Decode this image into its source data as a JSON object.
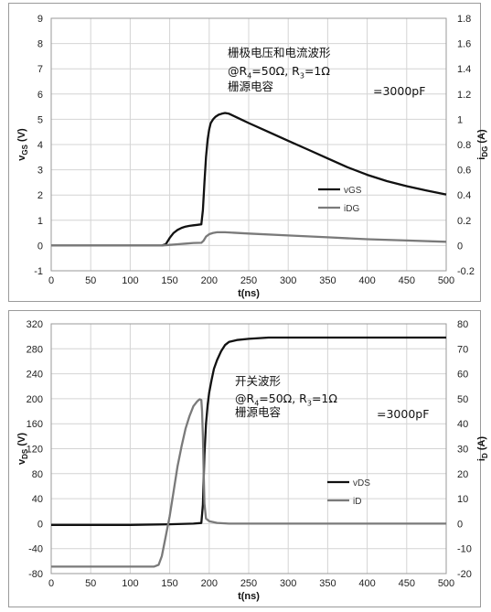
{
  "chart_data": [
    {
      "type": "line",
      "title": "",
      "xlabel": "t(ns)",
      "ylabel": "vₐₛ (V)",
      "ylabel_parts": {
        "main": "v",
        "sub": "GS",
        "unit": " (V)"
      },
      "y2label_parts": {
        "main": "i",
        "sub": "DG",
        "unit": " (A)"
      },
      "xlim": [
        0,
        500
      ],
      "ylim": [
        -1,
        9
      ],
      "y2lim": [
        -0.2,
        1.8
      ],
      "xticks": [
        "0",
        "50",
        "100",
        "150",
        "200",
        "250",
        "300",
        "350",
        "400",
        "450",
        "500"
      ],
      "yticks": [
        "-1",
        "0",
        "1",
        "2",
        "3",
        "4",
        "5",
        "6",
        "7",
        "8",
        "9"
      ],
      "y2ticks": [
        "-0.2",
        "0",
        "0.2",
        "0.4",
        "0.6",
        "0.8",
        "1",
        "1.2",
        "1.4",
        "1.6",
        "1.8"
      ],
      "grid": true,
      "legend_position": "center-right",
      "annotation": {
        "line1": "栅极电压和电流波形",
        "line2_prefix": "@R",
        "line2_sub1": "4",
        "line2_mid": "=50Ω,  R",
        "line2_sub2": "3",
        "line2_suffix": "=1Ω",
        "line3": "栅源电容",
        "line3_value": "=3000pF"
      },
      "series": [
        {
          "name": "vGS",
          "color": "#111111",
          "axis": "left",
          "x": [
            0,
            140,
            145,
            150,
            155,
            160,
            165,
            170,
            175,
            180,
            185,
            190,
            192,
            194,
            196,
            198,
            200,
            202,
            205,
            208,
            212,
            216,
            220,
            225,
            230,
            240,
            250,
            275,
            300,
            325,
            350,
            375,
            400,
            425,
            450,
            475,
            500
          ],
          "y": [
            0,
            0,
            0.05,
            0.3,
            0.5,
            0.62,
            0.7,
            0.75,
            0.78,
            0.8,
            0.82,
            0.84,
            1.4,
            2.5,
            3.5,
            4.2,
            4.6,
            4.85,
            5.0,
            5.1,
            5.18,
            5.22,
            5.25,
            5.22,
            5.15,
            5.0,
            4.85,
            4.5,
            4.15,
            3.8,
            3.45,
            3.1,
            2.8,
            2.55,
            2.35,
            2.18,
            2.02
          ]
        },
        {
          "name": "iDG",
          "color": "#7a7a7a",
          "axis": "right",
          "x": [
            0,
            140,
            150,
            160,
            170,
            180,
            190,
            193,
            196,
            200,
            205,
            210,
            220,
            250,
            300,
            350,
            400,
            450,
            500
          ],
          "y": [
            0,
            0,
            0.005,
            0.01,
            0.015,
            0.02,
            0.022,
            0.04,
            0.07,
            0.09,
            0.1,
            0.105,
            0.105,
            0.095,
            0.08,
            0.065,
            0.05,
            0.04,
            0.03
          ]
        }
      ]
    },
    {
      "type": "line",
      "title": "",
      "xlabel": "t(ns)",
      "ylabel_parts": {
        "main": "v",
        "sub": "DS",
        "unit": " (V)"
      },
      "y2label_parts": {
        "main": "i",
        "sub": "D",
        "unit": " (A)"
      },
      "xlim": [
        0,
        500
      ],
      "ylim": [
        -80,
        320
      ],
      "y2lim": [
        -20,
        80
      ],
      "xticks": [
        "0",
        "50",
        "100",
        "150",
        "200",
        "250",
        "300",
        "350",
        "400",
        "450",
        "500"
      ],
      "yticks": [
        "-80",
        "-40",
        "0",
        "40",
        "80",
        "120",
        "160",
        "200",
        "240",
        "280",
        "320"
      ],
      "y2ticks": [
        "-20",
        "-10",
        "0",
        "10",
        "20",
        "30",
        "40",
        "50",
        "60",
        "70",
        "80"
      ],
      "grid": true,
      "legend_position": "center-right",
      "annotation": {
        "line1": "开关波形",
        "line2_prefix": "@R",
        "line2_sub1": "4",
        "line2_mid": "=50Ω,  R",
        "line2_sub2": "3",
        "line2_suffix": "=1Ω",
        "line3": "栅源电容",
        "line3_value": "=3000pF"
      },
      "series": [
        {
          "name": "vDS",
          "color": "#111111",
          "axis": "left",
          "x": [
            0,
            100,
            150,
            180,
            190,
            192,
            194,
            196,
            198,
            200,
            203,
            206,
            210,
            215,
            220,
            225,
            235,
            250,
            275,
            300,
            400,
            500
          ],
          "y": [
            -2,
            -2,
            -1,
            0,
            1,
            30,
            110,
            160,
            190,
            210,
            230,
            248,
            262,
            276,
            286,
            291,
            294,
            296,
            298,
            298,
            298,
            298
          ]
        },
        {
          "name": "iD",
          "color": "#7a7a7a",
          "axis": "right",
          "x": [
            0,
            130,
            136,
            140,
            145,
            150,
            155,
            160,
            165,
            170,
            175,
            180,
            185,
            188,
            190,
            191,
            192,
            193,
            194,
            196,
            200,
            210,
            225,
            250,
            300,
            500
          ],
          "y": [
            -17.2,
            -17.2,
            -16.5,
            -13,
            -5,
            3,
            13,
            23,
            31,
            38,
            43,
            47,
            49,
            49.8,
            49.5,
            45,
            35,
            20,
            8,
            2,
            1,
            0.3,
            0,
            0,
            0,
            0
          ]
        }
      ]
    }
  ]
}
